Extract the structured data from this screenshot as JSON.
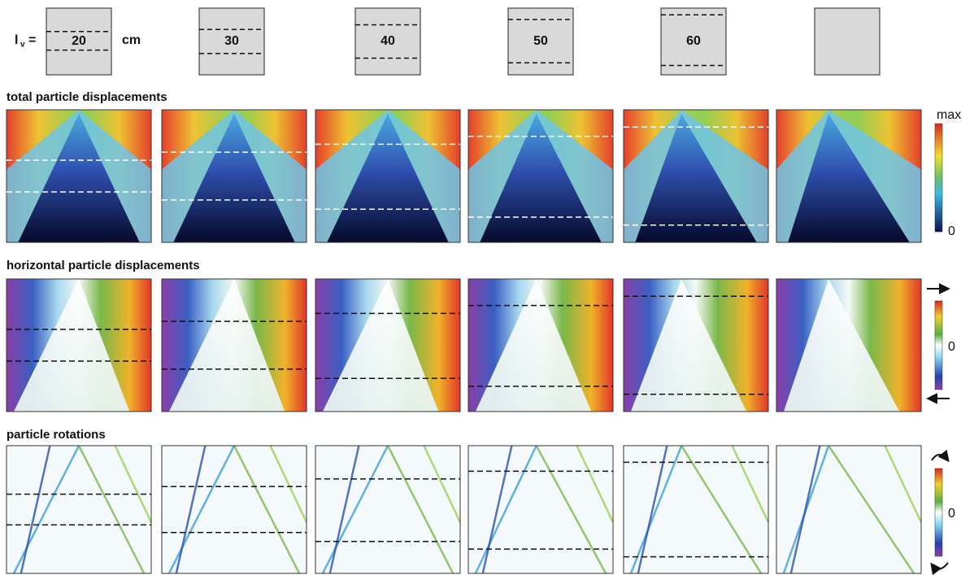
{
  "header": {
    "label_main": "l",
    "label_sub": "v",
    "equals": "=",
    "unit": "cm",
    "lengths": [
      "20",
      "30",
      "40",
      "50",
      "60"
    ]
  },
  "sections": [
    {
      "title": "total particle displacements",
      "colorbar": {
        "top": "max",
        "bottom": "0"
      }
    },
    {
      "title": "horizontal particle displacements",
      "colorbar": {
        "zero": "0"
      }
    },
    {
      "title": "particle rotations",
      "colorbar": {
        "zero": "0"
      }
    }
  ]
}
